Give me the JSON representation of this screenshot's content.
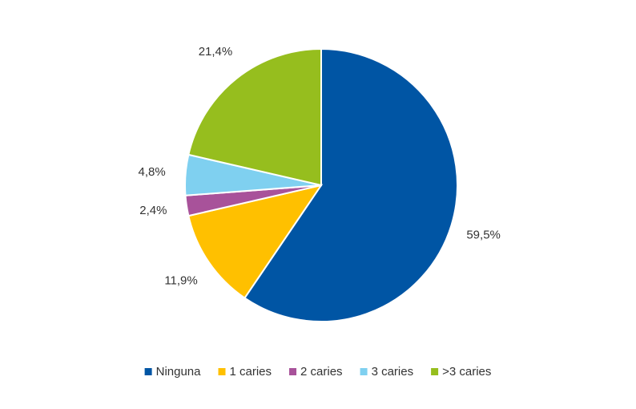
{
  "chart_data": {
    "type": "pie",
    "categories": [
      "Ninguna",
      "1 caries",
      "2 caries",
      "3 caries",
      ">3 caries"
    ],
    "values": [
      59.5,
      11.9,
      2.4,
      4.8,
      21.4
    ],
    "value_labels": [
      "59,5%",
      "11,9%",
      "2,4%",
      "4,8%",
      "21,4%"
    ],
    "colors": [
      "#0055a4",
      "#ffc000",
      "#a8529a",
      "#7fd0f0",
      "#96be1e"
    ],
    "legend": "bottom"
  }
}
